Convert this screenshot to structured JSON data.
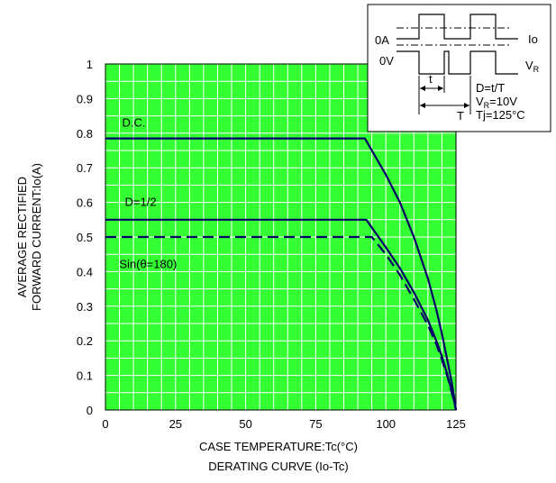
{
  "chart_data": {
    "type": "line",
    "xlabel": "CASE TEMPERATURE:Tc(°C)",
    "caption": "DERATING CURVE (Io-Tc)",
    "ylabel_line1": "AVERAGE RECTIFIED",
    "ylabel_line2": "FORWARD CURRENT:Io(A)",
    "xlim": [
      0,
      125
    ],
    "ylim": [
      0,
      1
    ],
    "xticks": [
      0,
      25,
      50,
      75,
      100,
      125
    ],
    "xtick_labels": [
      "0",
      "25",
      "50",
      "75",
      "100",
      "125"
    ],
    "yticks": [
      0,
      0.1,
      0.2,
      0.3,
      0.4,
      0.5,
      0.6,
      0.7,
      0.8,
      0.9,
      1
    ],
    "ytick_labels": [
      "0",
      "0.1",
      "0.2",
      "0.3",
      "0.4",
      "0.5",
      "0.6",
      "0.7",
      "0.8",
      "0.9",
      "1"
    ],
    "grid": true,
    "colors": {
      "background": "#33ff33",
      "grid": "#ffffff",
      "series": "#000066"
    },
    "series": [
      {
        "name": "D.C.",
        "style": "solid",
        "x": [
          0,
          92.5,
          100,
          105,
          110,
          115,
          118,
          120,
          122,
          123.5,
          124.5,
          125
        ],
        "y": [
          0.785,
          0.785,
          0.68,
          0.6,
          0.5,
          0.38,
          0.29,
          0.22,
          0.14,
          0.08,
          0.03,
          0
        ]
      },
      {
        "name": "D=1/2",
        "style": "solid",
        "x": [
          0,
          93,
          100,
          105,
          110,
          115,
          118,
          120,
          122,
          123.5,
          124.5,
          125
        ],
        "y": [
          0.55,
          0.55,
          0.47,
          0.41,
          0.34,
          0.26,
          0.2,
          0.155,
          0.1,
          0.055,
          0.02,
          0
        ]
      },
      {
        "name": "Sin(θ=180)",
        "style": "dashed",
        "x": [
          0,
          95,
          100,
          105,
          110,
          115,
          118,
          120,
          122,
          123.5,
          124.5,
          125
        ],
        "y": [
          0.5,
          0.5,
          0.45,
          0.39,
          0.32,
          0.245,
          0.19,
          0.145,
          0.095,
          0.05,
          0.02,
          0
        ]
      }
    ],
    "annotations": [
      {
        "text": "D.C.",
        "x": 4,
        "y": 0.83
      },
      {
        "text": "D=1/2",
        "x": 5,
        "y": 0.6
      },
      {
        "text": "Sin(θ=180)",
        "x": 3,
        "y": 0.42
      }
    ]
  },
  "inset": {
    "label_0a": "0A",
    "label_0v": "0V",
    "label_io": "Io",
    "label_vr": "V",
    "label_vr_sub": "R",
    "label_t_small": "t",
    "label_t_big": "T",
    "note_d": "D=t/T",
    "note_vr": "V",
    "note_vr_sub": "R",
    "note_vr_val": "=10V",
    "note_tj": "Tj=125°C"
  }
}
